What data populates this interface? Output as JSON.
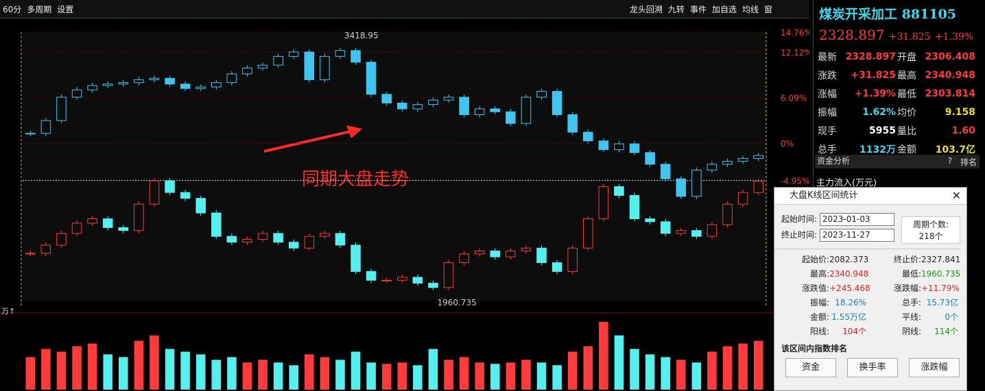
{
  "toolbar": {
    "left": [
      "60分",
      "多周期",
      "设置"
    ],
    "right": [
      "龙头回溯",
      "九转",
      "事件",
      "加自选",
      "均线",
      "窗"
    ]
  },
  "quote": {
    "name": "煤炭开采加工",
    "code": "881105",
    "price": "2328.897",
    "change": "+31.825",
    "pct": "+1.39%",
    "stats": [
      [
        "最新",
        "2328.897",
        "开盘",
        "2306.408"
      ],
      [
        "涨跌",
        "+31.825",
        "最高",
        "2340.948"
      ],
      [
        "涨幅",
        "+1.39%",
        "最低",
        "2303.814"
      ],
      [
        "振幅",
        "1.62%",
        "均价",
        "9.158"
      ],
      [
        "现手",
        "5955",
        "量比",
        "1.60"
      ],
      [
        "总手",
        "1132万",
        "金额",
        "103.7亿"
      ]
    ],
    "stat_colors": [
      [
        "#ff3b3b",
        "#ff3b3b"
      ],
      [
        "#ff3b3b",
        "#ff3b3b"
      ],
      [
        "#ff3b3b",
        "#ff3b3b"
      ],
      [
        "#3fd9f0",
        "#f0e020"
      ],
      [
        "#ffffff",
        "#ff3b3b"
      ],
      [
        "#3fd9f0",
        "#f0e020"
      ]
    ]
  },
  "fund": {
    "title": "资金分析",
    "help": "?",
    "rank": "排名",
    "flow": "主力流入(万元)"
  },
  "chart_data": {
    "type": "candlestick",
    "overlay_label": "同期大盘走势",
    "volume_unit": "万↑",
    "high_label": "3418.95",
    "low_label": "1960.735",
    "pct_lim": [
      -21,
      14.76
    ],
    "pct_ticks": [
      {
        "value": 14.76,
        "label": "14.76%"
      },
      {
        "value": 12.12,
        "label": "12.12%"
      },
      {
        "value": 6.09,
        "label": "6.09%"
      },
      {
        "value": 0,
        "label": "0%"
      },
      {
        "value": -4.95,
        "label": "-4.95%"
      }
    ],
    "market": {
      "ylim": [
        2540,
        3463
      ],
      "color": "#3fc5f0",
      "values": [
        3116,
        3160,
        3240,
        3265,
        3280,
        3285,
        3290,
        3300,
        3305,
        3285,
        3270,
        3275,
        3290,
        3320,
        3340,
        3350,
        3380,
        3395,
        3300,
        3380,
        3400,
        3360,
        3250,
        3220,
        3200,
        3215,
        3230,
        3240,
        3180,
        3200,
        3190,
        3150,
        3240,
        3260,
        3180,
        3120,
        3090,
        3060,
        3080,
        3050,
        3010,
        2960,
        2900,
        2990,
        3010,
        3020,
        3030,
        3040
      ]
    },
    "sector": {
      "ylim": [
        1918,
        2838
      ],
      "up_color": "#ff3b3b",
      "down_color": "#54f0f0",
      "values": [
        2082,
        2110,
        2150,
        2185,
        2200,
        2170,
        2160,
        2250,
        2330,
        2290,
        2270,
        2220,
        2140,
        2120,
        2130,
        2150,
        2120,
        2100,
        2140,
        2150,
        2110,
        2020,
        1990,
        1990,
        2000,
        1980,
        1965,
        2050,
        2080,
        2090,
        2070,
        2090,
        2100,
        2050,
        2020,
        2100,
        2200,
        2310,
        2280,
        2200,
        2190,
        2150,
        2160,
        2140,
        2180,
        2250,
        2290,
        2327.841
      ]
    },
    "volume": {
      "ylim": [
        0,
        260
      ],
      "values": [
        120,
        150,
        140,
        160,
        170,
        130,
        120,
        180,
        200,
        150,
        140,
        130,
        110,
        120,
        100,
        110,
        100,
        90,
        130,
        120,
        110,
        140,
        100,
        95,
        100,
        90,
        150,
        110,
        120,
        100,
        95,
        100,
        110,
        100,
        90,
        140,
        160,
        250,
        200,
        150,
        130,
        120,
        110,
        100,
        140,
        160,
        170,
        180
      ]
    }
  },
  "popup": {
    "title": "大盘K线区间统计",
    "start_label": "起始时间:",
    "start": "2023-01-03",
    "end_label": "终止时间:",
    "end": "2023-11-27",
    "count_label": "周期个数:",
    "count": "218个",
    "rows": [
      [
        "起始价:",
        "2082.373",
        "终止价:",
        "2327.841"
      ],
      [
        "最高:",
        "2340.948",
        "最低:",
        "1960.735"
      ],
      [
        "涨跌值:",
        "+245.468",
        "涨跌幅:",
        "+11.79%"
      ],
      [
        "振幅:",
        "18.26%",
        "总手:",
        "15.73亿"
      ],
      [
        "金额:",
        "1.55万亿",
        "平线:",
        "0个"
      ],
      [
        "阳线:",
        "104个",
        "阴线:",
        "114个"
      ]
    ],
    "row_colors": [
      [
        "#222",
        "#222"
      ],
      [
        "#e02020",
        "#1a9a1a"
      ],
      [
        "#e02020",
        "#e02020"
      ],
      [
        "#1a7fc0",
        "#1a7fc0"
      ],
      [
        "#1a7fc0",
        "#1a7fc0"
      ],
      [
        "#e02020",
        "#1a9a1a"
      ]
    ],
    "rank_title": "该区间内指数排名",
    "buttons": [
      "资金",
      "换手率",
      "涨跌幅"
    ]
  }
}
